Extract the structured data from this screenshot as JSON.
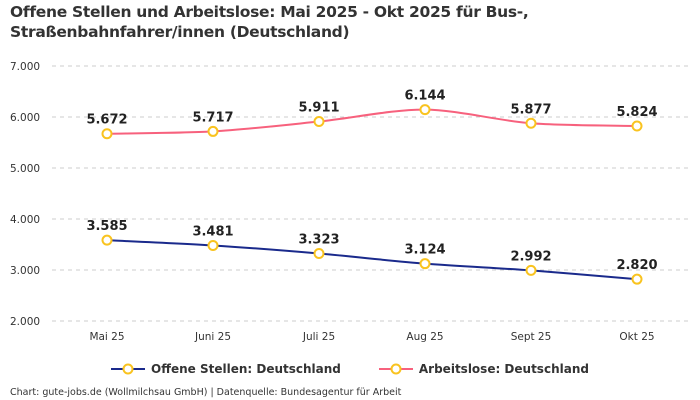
{
  "chart_data": {
    "type": "line",
    "title": "Offene Stellen und Arbeitslose: Mai 2025 - Okt 2025 für Bus-, Straßenbahnfahrer/innen (Deutschland)",
    "categories": [
      "Mai 25",
      "Juni 25",
      "Juli 25",
      "Aug 25",
      "Sept 25",
      "Okt 25"
    ],
    "ylim": [
      2000,
      7000
    ],
    "yticks": [
      2000,
      3000,
      4000,
      5000,
      6000,
      7000
    ],
    "ytick_labels": [
      "2.000",
      "3.000",
      "4.000",
      "5.000",
      "6.000",
      "7.000"
    ],
    "grid": true,
    "legend_position": "bottom",
    "series": [
      {
        "name": "Offene Stellen: Deutschland",
        "color": "#1a2a8c",
        "values": [
          3585,
          3481,
          3323,
          3124,
          2992,
          2820
        ],
        "labels": [
          "3.585",
          "3.481",
          "3.323",
          "3.124",
          "2.992",
          "2.820"
        ]
      },
      {
        "name": "Arbeitslose: Deutschland",
        "color": "#f7617d",
        "values": [
          5672,
          5717,
          5911,
          6144,
          5877,
          5824
        ],
        "labels": [
          "5.672",
          "5.717",
          "5.911",
          "6.144",
          "5.877",
          "5.824"
        ]
      }
    ],
    "marker_color": "#f9c31f"
  },
  "credit": "Chart: gute-jobs.de (Wollmilchsau GmbH) | Datenquelle: Bundesagentur für Arbeit"
}
